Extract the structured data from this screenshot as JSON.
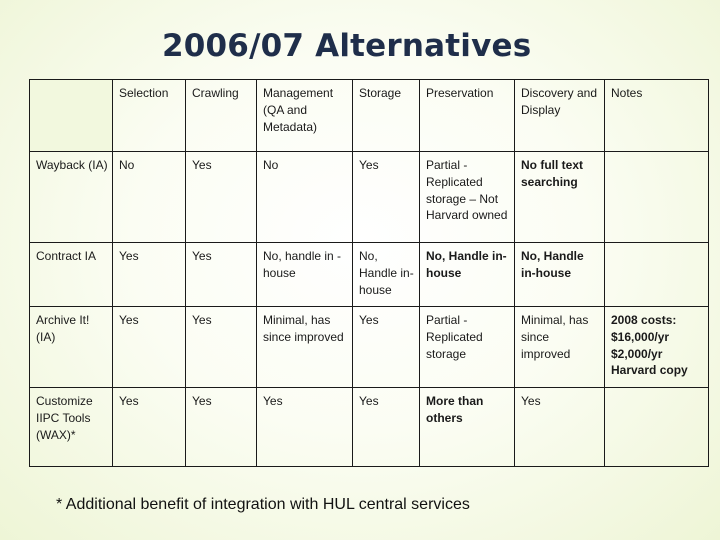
{
  "title": "2006/07 Alternatives",
  "table": {
    "headers": [
      "",
      "Selection",
      "Crawling",
      "Management (QA and Metadata)",
      "Storage",
      "Preservation",
      "Discovery and Display",
      "Notes"
    ],
    "rows": [
      {
        "label": "Wayback (IA)",
        "cells": [
          "No",
          "Yes",
          "No",
          "Yes",
          "Partial - Replicated storage – Not Harvard owned",
          "No full text searching",
          ""
        ]
      },
      {
        "label": "Contract IA",
        "cells": [
          "Yes",
          "Yes",
          "No, handle in -house",
          "No, Handle in-house",
          "No, Handle in-house",
          "No, Handle in-house",
          ""
        ]
      },
      {
        "label": "Archive It! (IA)",
        "cells": [
          "Yes",
          "Yes",
          "Minimal, has since improved",
          "Yes",
          "Partial - Replicated storage",
          "Minimal, has since improved",
          "2008 costs: $16,000/yr $2,000/yr Harvard copy"
        ]
      },
      {
        "label": "Customize IIPC Tools (WAX)*",
        "cells": [
          "Yes",
          "Yes",
          "Yes",
          "Yes",
          "More than others",
          "Yes",
          ""
        ]
      }
    ]
  },
  "footnote": "* Additional benefit of integration with HUL central services",
  "colors": {
    "title": "#1f2e4a",
    "cell_highlight": "#f2f8de",
    "border": "#1a1a1a",
    "background_edge": "#eef5d6"
  }
}
